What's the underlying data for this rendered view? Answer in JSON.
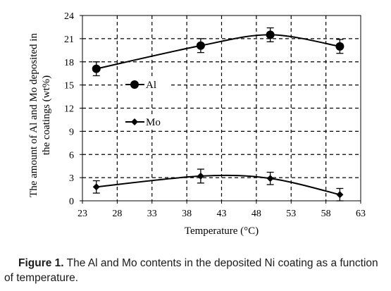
{
  "chart_data": {
    "type": "line",
    "xlabel": "Temperature (°C)",
    "ylabel_lines": [
      "The amount of Al and Mo deposited in",
      "the coatings (wt%)"
    ],
    "xlim": [
      23,
      63
    ],
    "ylim": [
      0,
      24
    ],
    "x_ticks": [
      23,
      28,
      33,
      38,
      43,
      48,
      53,
      58,
      63
    ],
    "y_ticks": [
      0,
      3,
      6,
      9,
      12,
      15,
      18,
      21,
      24
    ],
    "grid": "dashed",
    "legend_placement": "inside-left",
    "series": [
      {
        "name": "Al",
        "marker": "circle",
        "x": [
          25,
          40,
          50,
          60
        ],
        "y": [
          17.1,
          20.1,
          21.5,
          20.0
        ],
        "error": [
          0.9,
          0.9,
          0.9,
          0.9
        ]
      },
      {
        "name": "Mo",
        "marker": "diamond",
        "x": [
          25,
          40,
          50,
          60
        ],
        "y": [
          1.8,
          3.2,
          2.9,
          0.8
        ],
        "error": [
          0.8,
          0.9,
          0.8,
          0.8
        ]
      }
    ]
  },
  "caption": {
    "lead": "Figure 1.",
    "text": " The Al and Mo contents in the deposited Ni coating as a function of temperature."
  }
}
